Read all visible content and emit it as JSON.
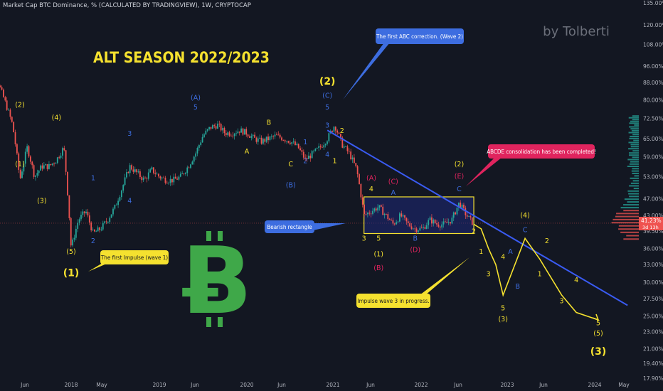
{
  "header": {
    "symbol_line": "Market Cap BTC Dominance, % (CALCULATED BY TRADINGVIEW), 1W, CRYPTOCAP"
  },
  "watermark": "by Tolberti",
  "main_title": "ALT SEASON 2022/2023",
  "colors": {
    "background": "#131722",
    "up": "#26a69a",
    "down": "#ef5350",
    "yellow": "#f5e12f",
    "blue": "#3d6de0",
    "red": "#e0245e",
    "green": "#3fa849",
    "axis_text": "#b2b5be",
    "trendline": "#3a5bf2"
  },
  "callouts": {
    "abc_correction": "The first ABC correction. (Wave 2)",
    "abcde": "ABCDE consolidation has been completed!",
    "bearish_rectangle": "Bearish rectangle",
    "first_impulse": "The first Impulse (wave 1)",
    "impulse_wave3": "Impulse wave 3 in progress."
  },
  "price_box": {
    "value": "41.23%",
    "countdown": "3d 13h"
  },
  "chart_data": {
    "type": "candlestick",
    "y_scale": "log",
    "ylim": [
      17.9,
      135
    ],
    "y_ticks": [
      "135.00%",
      "120.00%",
      "108.00%",
      "96.00%",
      "88.00%",
      "80.00%",
      "72.50%",
      "65.00%",
      "59.00%",
      "53.00%",
      "47.00%",
      "43.00%",
      "39.50%",
      "36.00%",
      "33.00%",
      "30.00%",
      "27.50%",
      "25.00%",
      "23.00%",
      "21.00%",
      "19.40%",
      "17.90%"
    ],
    "x_ticks": [
      "Jun",
      "2018",
      "May",
      "2019",
      "Jun",
      "2020",
      "Jun",
      "2021",
      "Jun",
      "2022",
      "Jun",
      "2023",
      "Jun",
      "2024",
      "May"
    ],
    "price_anchors": [
      [
        "2017-01",
        95
      ],
      [
        "2017-03",
        88
      ],
      [
        "2017-05",
        70
      ],
      [
        "2017-06",
        52
      ],
      [
        "2017-07",
        62
      ],
      [
        "2017-08",
        53
      ],
      [
        "2017-09",
        56
      ],
      [
        "2017-10",
        56
      ],
      [
        "2017-11",
        58
      ],
      [
        "2017-12",
        62
      ],
      [
        "2018-01",
        36
      ],
      [
        "2018-02",
        42
      ],
      [
        "2018-03",
        44
      ],
      [
        "2018-04",
        39
      ],
      [
        "2018-05",
        40
      ],
      [
        "2018-06",
        42
      ],
      [
        "2018-07",
        45
      ],
      [
        "2018-08",
        50
      ],
      [
        "2018-09",
        56
      ],
      [
        "2018-10",
        54
      ],
      [
        "2018-11",
        52
      ],
      [
        "2018-12",
        55
      ],
      [
        "2019-01",
        53
      ],
      [
        "2019-02",
        52
      ],
      [
        "2019-03",
        52
      ],
      [
        "2019-04",
        53
      ],
      [
        "2019-05",
        56
      ],
      [
        "2019-06",
        60
      ],
      [
        "2019-07",
        66
      ],
      [
        "2019-08",
        69
      ],
      [
        "2019-09",
        70
      ],
      [
        "2019-10",
        67
      ],
      [
        "2019-11",
        67
      ],
      [
        "2019-12",
        68
      ],
      [
        "2020-01",
        67
      ],
      [
        "2020-02",
        65
      ],
      [
        "2020-03",
        64
      ],
      [
        "2020-04",
        65
      ],
      [
        "2020-05",
        66
      ],
      [
        "2020-06",
        65
      ],
      [
        "2020-07",
        64
      ],
      [
        "2020-08",
        62
      ],
      [
        "2020-09",
        58
      ],
      [
        "2020-10",
        60
      ],
      [
        "2020-11",
        62
      ],
      [
        "2020-12",
        65
      ],
      [
        "2021-01",
        70
      ],
      [
        "2021-02",
        63
      ],
      [
        "2021-03",
        60
      ],
      [
        "2021-04",
        55
      ],
      [
        "2021-05",
        43
      ],
      [
        "2021-06",
        44
      ],
      [
        "2021-07",
        45
      ],
      [
        "2021-08",
        43
      ],
      [
        "2021-09",
        41
      ],
      [
        "2021-10",
        43
      ],
      [
        "2021-11",
        41
      ],
      [
        "2021-12",
        40
      ],
      [
        "2022-01",
        40
      ],
      [
        "2022-02",
        42
      ],
      [
        "2022-03",
        41
      ],
      [
        "2022-04",
        41
      ],
      [
        "2022-05",
        42
      ],
      [
        "2022-06",
        46
      ],
      [
        "2022-07",
        43
      ],
      [
        "2022-08",
        41
      ]
    ],
    "projection_path": [
      [
        "2022-08",
        41
      ],
      [
        "2022-09",
        40
      ],
      [
        "2022-10",
        36
      ],
      [
        "2022-11",
        33
      ],
      [
        "2022-12",
        28
      ],
      [
        "2023-03",
        38
      ],
      [
        "2023-05",
        34
      ],
      [
        "2023-08",
        28
      ],
      [
        "2023-10",
        25.5
      ],
      [
        "2024-01",
        24.5
      ]
    ],
    "trendline": [
      [
        "2020-12",
        68
      ],
      [
        "2024-05",
        26.5
      ]
    ],
    "consolidation_box": {
      "from": "2021-05",
      "to": "2022-08",
      "top": 47.5,
      "bottom": 39
    },
    "wave_labels": [
      {
        "text": "(2)",
        "color": "yellow",
        "at": [
          "2017-06",
          77
        ]
      },
      {
        "text": "(1)",
        "color": "yellow",
        "at": [
          "2017-06",
          56
        ]
      },
      {
        "text": "(4)",
        "color": "yellow",
        "at": [
          "2017-11",
          72
        ]
      },
      {
        "text": "(3)",
        "color": "yellow",
        "at": [
          "2017-09",
          46
        ]
      },
      {
        "text": "(5)",
        "color": "yellow",
        "at": [
          "2018-01",
          35
        ]
      },
      {
        "text": "(1)",
        "color": "yellow",
        "at": [
          "2018-01",
          31
        ]
      },
      {
        "text": "1",
        "color": "blue",
        "at": [
          "2018-04",
          52
        ]
      },
      {
        "text": "2",
        "color": "blue",
        "at": [
          "2018-04",
          37
        ]
      },
      {
        "text": "3",
        "color": "blue",
        "at": [
          "2018-09",
          66
        ]
      },
      {
        "text": "4",
        "color": "blue",
        "at": [
          "2018-09",
          46
        ]
      },
      {
        "text": "(A)",
        "color": "blue",
        "at": [
          "2019-06",
          80
        ]
      },
      {
        "text": "5",
        "color": "blue",
        "at": [
          "2019-06",
          76
        ]
      },
      {
        "text": "A",
        "color": "yellow",
        "at": [
          "2020-01",
          60
        ]
      },
      {
        "text": "B",
        "color": "yellow",
        "at": [
          "2020-04",
          70
        ]
      },
      {
        "text": "C",
        "color": "yellow",
        "at": [
          "2020-07",
          56
        ]
      },
      {
        "text": "(B)",
        "color": "blue",
        "at": [
          "2020-07",
          50
        ]
      },
      {
        "text": "1",
        "color": "blue",
        "at": [
          "2020-09",
          63
        ]
      },
      {
        "text": "2",
        "color": "blue",
        "at": [
          "2020-09",
          57
        ]
      },
      {
        "text": "3",
        "color": "blue",
        "at": [
          "2020-12",
          69
        ]
      },
      {
        "text": "4",
        "color": "blue",
        "at": [
          "2020-12",
          59
        ]
      },
      {
        "text": "(2)",
        "color": "yellow",
        "at": [
          "2020-12",
          87
        ]
      },
      {
        "text": "(C)",
        "color": "blue",
        "at": [
          "2020-12",
          81
        ]
      },
      {
        "text": "5",
        "color": "blue",
        "at": [
          "2020-12",
          76
        ]
      },
      {
        "text": "2",
        "color": "yellow",
        "at": [
          "2021-02",
          67
        ]
      },
      {
        "text": "1",
        "color": "yellow",
        "at": [
          "2021-01",
          57
        ]
      },
      {
        "text": "(A)",
        "color": "red",
        "at": [
          "2021-06",
          52
        ]
      },
      {
        "text": "4",
        "color": "yellow",
        "at": [
          "2021-06",
          49
        ]
      },
      {
        "text": "(C)",
        "color": "red",
        "at": [
          "2021-09",
          51
        ]
      },
      {
        "text": "A",
        "color": "blue",
        "at": [
          "2021-09",
          48
        ]
      },
      {
        "text": "3",
        "color": "yellow",
        "at": [
          "2021-05",
          37.5
        ]
      },
      {
        "text": "5",
        "color": "yellow",
        "at": [
          "2021-07",
          37.5
        ]
      },
      {
        "text": "(1)",
        "color": "yellow",
        "at": [
          "2021-07",
          34.5
        ]
      },
      {
        "text": "(B)",
        "color": "red",
        "at": [
          "2021-07",
          32
        ]
      },
      {
        "text": "B",
        "color": "blue",
        "at": [
          "2021-12",
          37.5
        ]
      },
      {
        "text": "(D)",
        "color": "red",
        "at": [
          "2021-12",
          35.3
        ]
      },
      {
        "text": "(2)",
        "color": "yellow",
        "at": [
          "2022-06",
          56
        ]
      },
      {
        "text": "(E)",
        "color": "red",
        "at": [
          "2022-06",
          52.5
        ]
      },
      {
        "text": "C",
        "color": "blue",
        "at": [
          "2022-06",
          49
        ]
      },
      {
        "text": "2",
        "color": "yellow",
        "at": [
          "2022-08",
          39
        ]
      },
      {
        "text": "1",
        "color": "yellow",
        "at": [
          "2022-09",
          35
        ]
      },
      {
        "text": "3",
        "color": "yellow",
        "at": [
          "2022-10",
          31
        ]
      },
      {
        "text": "4",
        "color": "yellow",
        "at": [
          "2022-12",
          34
        ]
      },
      {
        "text": "A",
        "color": "blue",
        "at": [
          "2023-01",
          35
        ]
      },
      {
        "text": "5",
        "color": "yellow",
        "at": [
          "2022-12",
          25.8
        ]
      },
      {
        "text": "(3)",
        "color": "yellow",
        "at": [
          "2022-12",
          24.3
        ]
      },
      {
        "text": "B",
        "color": "blue",
        "at": [
          "2023-02",
          29
        ]
      },
      {
        "text": "(4)",
        "color": "yellow",
        "at": [
          "2023-03",
          42.5
        ]
      },
      {
        "text": "C",
        "color": "blue",
        "at": [
          "2023-03",
          39.3
        ]
      },
      {
        "text": "2",
        "color": "yellow",
        "at": [
          "2023-06",
          37
        ]
      },
      {
        "text": "1",
        "color": "yellow",
        "at": [
          "2023-05",
          31
        ]
      },
      {
        "text": "4",
        "color": "yellow",
        "at": [
          "2023-10",
          30
        ]
      },
      {
        "text": "3",
        "color": "yellow",
        "at": [
          "2023-08",
          26.8
        ]
      },
      {
        "text": "5",
        "color": "yellow",
        "at": [
          "2024-01",
          23.8
        ]
      },
      {
        "text": "(5)",
        "color": "yellow",
        "at": [
          "2024-01",
          22.5
        ]
      },
      {
        "text": "(3)",
        "color": "yellow",
        "at": [
          "2024-01",
          20.3
        ]
      }
    ]
  }
}
